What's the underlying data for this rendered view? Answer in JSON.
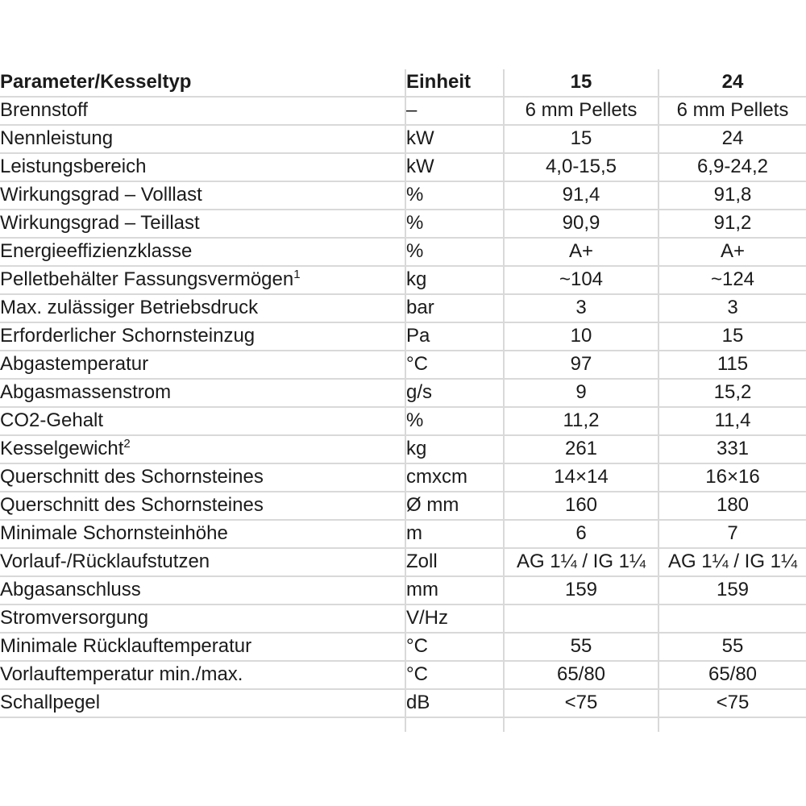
{
  "page": {
    "background_color": "#ffffff",
    "text_color": "#1b1b1b",
    "grid_color": "#d9d9d9"
  },
  "table": {
    "header": {
      "parameter": "Parameter/Kesseltyp",
      "unit": "Einheit",
      "model_15": "15",
      "model_24": "24"
    },
    "rows": [
      {
        "label": "Brennstoff",
        "sup": "",
        "unit": "–",
        "v15": "6 mm Pellets",
        "v24": "6 mm Pellets"
      },
      {
        "label": "Nennleistung",
        "sup": "",
        "unit": "kW",
        "v15": "15",
        "v24": "24"
      },
      {
        "label": "Leistungsbereich",
        "sup": "",
        "unit": "kW",
        "v15": "4,0-15,5",
        "v24": "6,9-24,2"
      },
      {
        "label": "Wirkungsgrad – Volllast",
        "sup": "",
        "unit": "%",
        "v15": "91,4",
        "v24": "91,8"
      },
      {
        "label": "Wirkungsgrad – Teillast",
        "sup": "",
        "unit": "%",
        "v15": "90,9",
        "v24": "91,2"
      },
      {
        "label": "Energieeffizienzklasse",
        "sup": "",
        "unit": "%",
        "v15": "A+",
        "v24": "A+"
      },
      {
        "label": "Pelletbehälter Fassungsvermögen",
        "sup": "1",
        "unit": "kg",
        "v15": "~104",
        "v24": "~124"
      },
      {
        "label": "Max. zulässiger Betriebsdruck",
        "sup": "",
        "unit": "bar",
        "v15": "3",
        "v24": "3"
      },
      {
        "label": "Erforderlicher Schornsteinzug",
        "sup": "",
        "unit": "Pa",
        "v15": "10",
        "v24": "15"
      },
      {
        "label": "Abgastemperatur",
        "sup": "",
        "unit": "°C",
        "v15": "97",
        "v24": "115"
      },
      {
        "label": "Abgasmassenstrom",
        "sup": "",
        "unit": "g/s",
        "v15": "9",
        "v24": "15,2"
      },
      {
        "label": "CO2-Gehalt",
        "sup": "",
        "unit": "%",
        "v15": "11,2",
        "v24": "11,4"
      },
      {
        "label": "Kesselgewicht",
        "sup": "2",
        "unit": "kg",
        "v15": "261",
        "v24": "331"
      },
      {
        "label": "Querschnitt des Schornsteines",
        "sup": "",
        "unit": "cmxcm",
        "v15": "14×14",
        "v24": "16×16"
      },
      {
        "label": "Querschnitt des Schornsteines",
        "sup": "",
        "unit": "Ø mm",
        "v15": "160",
        "v24": "180"
      },
      {
        "label": "Minimale Schornsteinhöhe",
        "sup": "",
        "unit": "m",
        "v15": "6",
        "v24": "7"
      },
      {
        "label": "Vorlauf-/Rücklaufstutzen",
        "sup": "",
        "unit": "Zoll",
        "v15": "AG 1¼ / IG 1¼",
        "v24": "AG 1¼ / IG 1¼"
      },
      {
        "label": "Abgasanschluss",
        "sup": "",
        "unit": "mm",
        "v15": "159",
        "v24": "159"
      },
      {
        "label": "Stromversorgung",
        "sup": "",
        "unit": "V/Hz",
        "v15": "",
        "v24": ""
      },
      {
        "label": "Minimale Rücklauftemperatur",
        "sup": "",
        "unit": "°C",
        "v15": "55",
        "v24": "55"
      },
      {
        "label": "Vorlauftemperatur min./max.",
        "sup": "",
        "unit": "°C",
        "v15": "65/80",
        "v24": "65/80"
      },
      {
        "label": "Schallpegel",
        "sup": "",
        "unit": "dB",
        "v15": "<75",
        "v24": "<75"
      }
    ]
  }
}
